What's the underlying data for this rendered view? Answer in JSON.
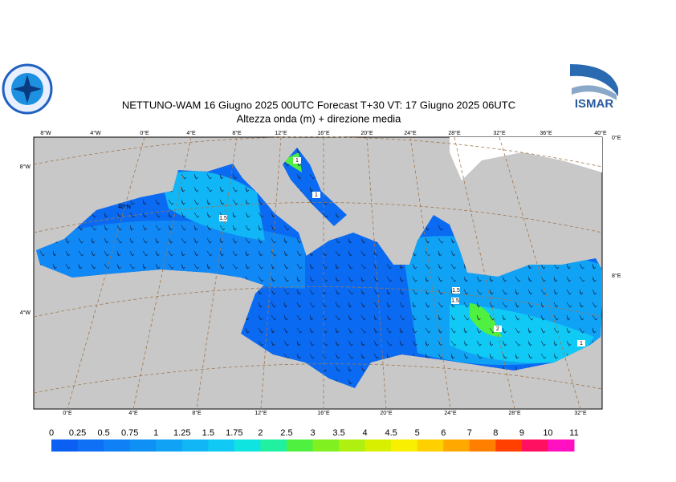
{
  "header": {
    "title": "NETTUNO-WAM  16   Giugno  2025 00UTC Forecast T+30 VT: 17   Giugno  2025 06UTC",
    "subtitle": "Altezza onda (m) + direzione media",
    "logo_right": "ISMAR"
  },
  "map": {
    "top_labels": [
      "8°W",
      "4°W",
      "0°E",
      "4°E",
      "8°E",
      "12°E",
      "16°E",
      "20°E",
      "24°E",
      "28°E",
      "32°E",
      "36°E",
      "40°E"
    ],
    "bottom_labels": [
      "0°E",
      "4°E",
      "8°E",
      "12°E",
      "16°E",
      "20°E",
      "24°E",
      "28°E",
      "32°E"
    ],
    "left_labels": [
      "8°W",
      "40°N",
      "4°W"
    ],
    "right_labels": [
      "0°E",
      "8°E"
    ],
    "contour_labels": [
      "1",
      "1",
      "1.5",
      "1.5",
      "1.5",
      "2",
      "1"
    ]
  },
  "colorbar": {
    "levels": [
      0,
      0.25,
      0.5,
      0.75,
      1,
      1.25,
      1.5,
      1.75,
      2,
      2.5,
      3,
      3.5,
      4,
      4.5,
      5,
      6,
      7,
      8,
      9,
      10,
      11
    ],
    "colors": [
      "#0b5ff2",
      "#0f6ff5",
      "#0f80f5",
      "#0f90f5",
      "#10a2f5",
      "#10b6f5",
      "#10caf5",
      "#10e4e0",
      "#20f0a0",
      "#50f040",
      "#80f020",
      "#b0f010",
      "#d8f000",
      "#f8f000",
      "#ffd000",
      "#ffa800",
      "#ff8000",
      "#ff4000",
      "#ff1060",
      "#ff10c0"
    ]
  }
}
